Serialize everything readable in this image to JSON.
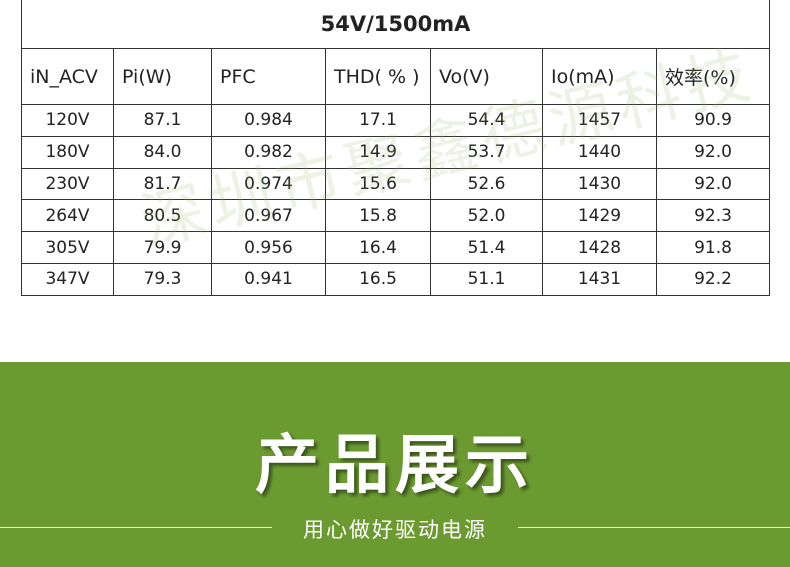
{
  "table": {
    "title": "54V/1500mA",
    "header": [
      "iN_ACV",
      "Pi(W)",
      "PFC",
      "THD( % )",
      "Vo(V)",
      "Io(mA)",
      "效率(%)"
    ],
    "rows": [
      [
        "120V",
        "87.1",
        "0.984",
        "17.1",
        "54.4",
        "1457",
        "90.9"
      ],
      [
        "180V",
        "84.0",
        "0.982",
        "14.9",
        "53.7",
        "1440",
        "92.0"
      ],
      [
        "230V",
        "81.7",
        "0.974",
        "15.6",
        "52.6",
        "1430",
        "92.0"
      ],
      [
        "264V",
        "80.5",
        "0.967",
        "15.8",
        "52.0",
        "1429",
        "92.3"
      ],
      [
        "305V",
        "79.9",
        "0.956",
        "16.4",
        "51.4",
        "1428",
        "91.8"
      ],
      [
        "347V",
        "79.3",
        "0.941",
        "16.5",
        "51.1",
        "1431",
        "92.2"
      ]
    ]
  },
  "watermark": "深圳市聚鑫德源科技",
  "banner": {
    "title": "产品展示",
    "subtitle": "用心做好驱动电源"
  }
}
